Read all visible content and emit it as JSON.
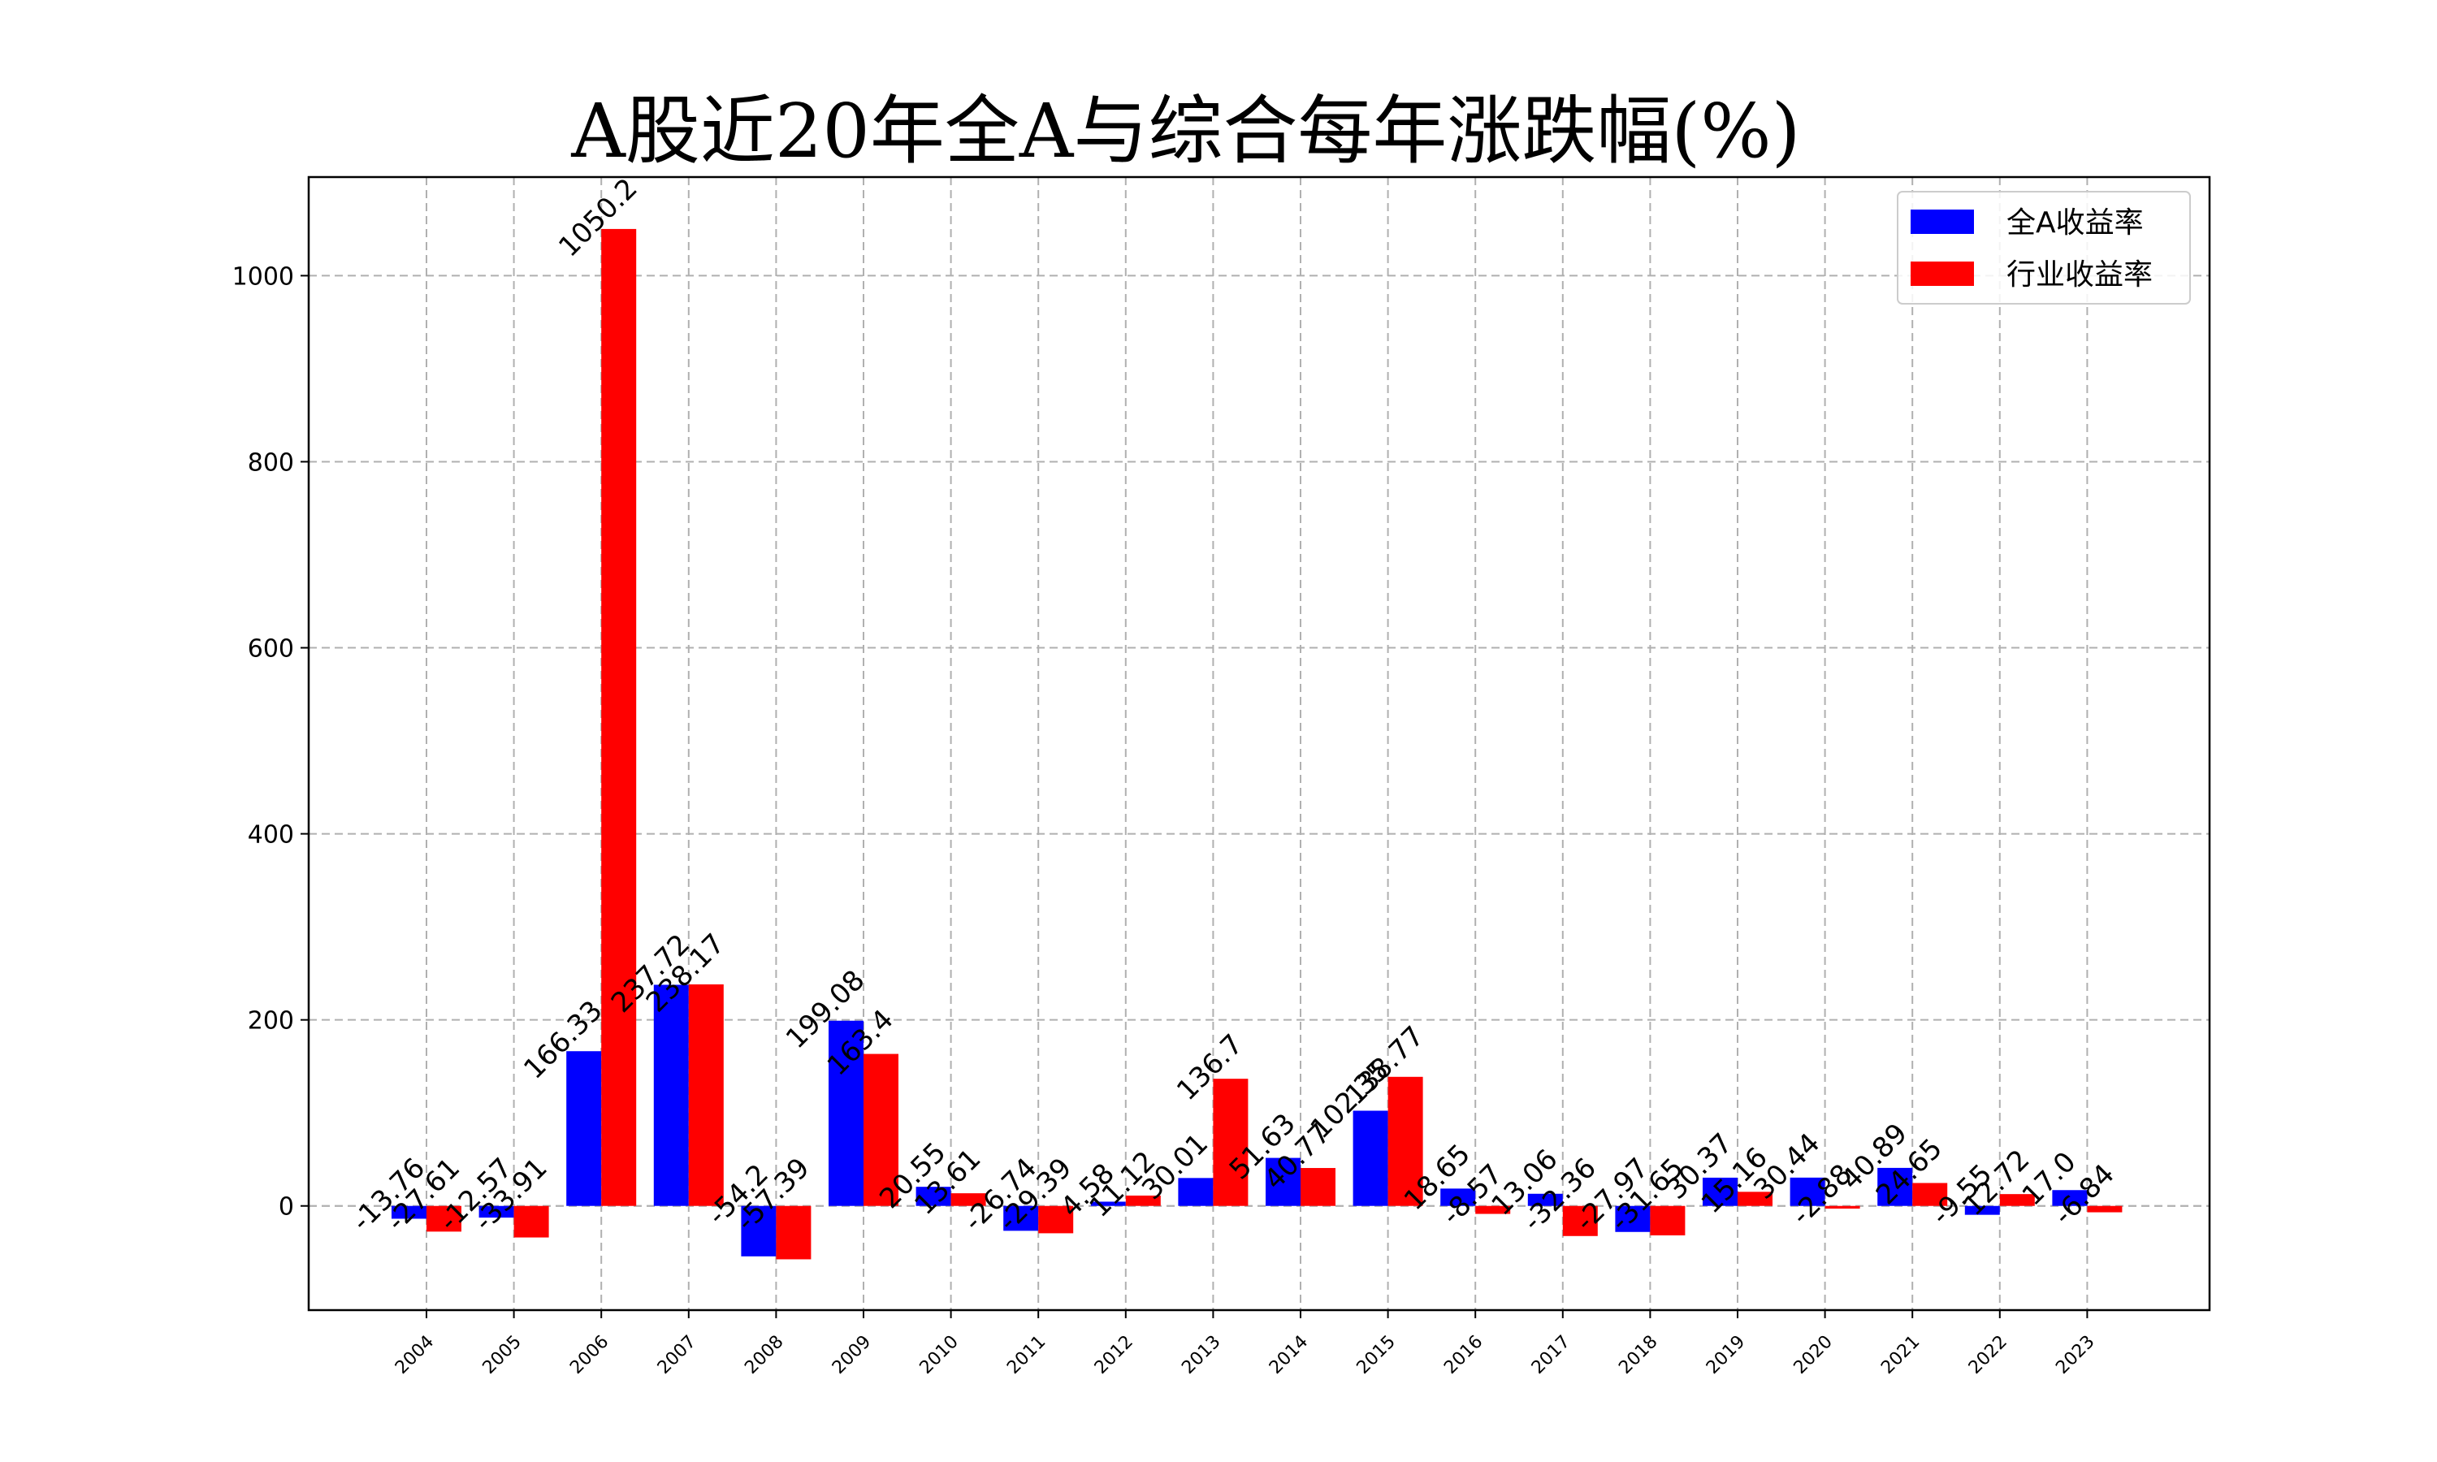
{
  "chart_data": {
    "type": "bar",
    "title": "A股近20年全A与综合每年涨跌幅(%)",
    "categories": [
      "2004",
      "2005",
      "2006",
      "2007",
      "2008",
      "2009",
      "2010",
      "2011",
      "2012",
      "2013",
      "2014",
      "2015",
      "2016",
      "2017",
      "2018",
      "2019",
      "2020",
      "2021",
      "2022",
      "2023"
    ],
    "series": [
      {
        "name": "全A收益率",
        "color": "#0000ff",
        "values": [
          -13.76,
          -12.57,
          166.33,
          237.72,
          -54.2,
          199.08,
          20.55,
          -26.74,
          4.58,
          30.01,
          51.63,
          102.35,
          18.65,
          13.06,
          -27.97,
          30.37,
          30.44,
          40.89,
          -9.55,
          17.0
        ],
        "labels": [
          "-13.76",
          "-12.57",
          "166.33",
          "237.72",
          "-54.2",
          "199.08",
          "20.55",
          "-26.74",
          "4.58",
          "30.01",
          "51.63",
          "102.35",
          "18.65",
          "13.06",
          "-27.97",
          "30.37",
          "30.44",
          "40.89",
          "-9.55",
          "17.0"
        ]
      },
      {
        "name": "行业收益率",
        "color": "#ff0000",
        "values": [
          -27.61,
          -33.91,
          1050.2,
          238.17,
          -57.39,
          163.4,
          13.61,
          -29.39,
          11.12,
          136.7,
          40.77,
          138.77,
          -8.57,
          -32.36,
          -31.65,
          15.16,
          -2.88,
          24.65,
          12.72,
          -6.84
        ],
        "labels": [
          "-27.61",
          "-33.91",
          "1050.2",
          "238.17",
          "-57.39",
          "163.4",
          "13.61",
          "-29.39",
          "11.12",
          "136.7",
          "40.77",
          "138.77",
          "-8.57",
          "-32.36",
          "-31.65",
          "15.16",
          "-2.88",
          "24.65",
          "12.72",
          "-6.84"
        ]
      }
    ],
    "y_ticks": [
      0,
      200,
      400,
      600,
      800,
      1000
    ],
    "ylim": [
      -112,
      1106
    ],
    "grid": true,
    "legend_position": "top-right",
    "xlabel": "",
    "ylabel": ""
  }
}
